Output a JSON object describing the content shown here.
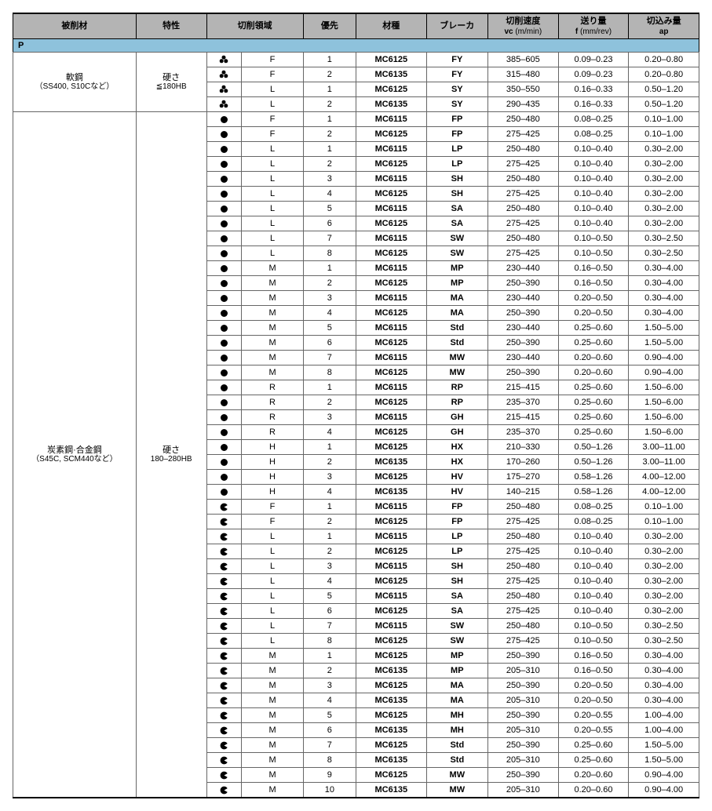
{
  "colors": {
    "header_bg": "#b4b4b4",
    "category_bg": "#8ec2dc",
    "border": "#666666",
    "strong_border": "#000000",
    "text": "#000000"
  },
  "fonts": {
    "base_size_pt": 11,
    "header_weight": "bold"
  },
  "header": {
    "material": "被削材",
    "property": "特性",
    "area": "切削領域",
    "priority": "優先",
    "grade": "材種",
    "breaker": "ブレーカ",
    "vc_top": "切削速度",
    "vc_sub": "vc (m/min)",
    "f_top": "送り量",
    "f_sub": "f (mm/rev)",
    "ap_top": "切込み量",
    "ap_sub": "ap"
  },
  "category": {
    "code": "P"
  },
  "groups": [
    {
      "material_jp": "軟鋼",
      "material_sub": "（SS400, S10Cなど）",
      "property_jp": "硬さ",
      "property_val": "≦180HB",
      "rows": [
        {
          "sym": "clover",
          "area": "F",
          "pri": "1",
          "grade": "MC6125",
          "brk": "FY",
          "vc": "385–605",
          "f": "0.09–0.23",
          "ap": "0.20–0.80"
        },
        {
          "sym": "clover",
          "area": "F",
          "pri": "2",
          "grade": "MC6135",
          "brk": "FY",
          "vc": "315–480",
          "f": "0.09–0.23",
          "ap": "0.20–0.80"
        },
        {
          "sym": "clover",
          "area": "L",
          "pri": "1",
          "grade": "MC6125",
          "brk": "SY",
          "vc": "350–550",
          "f": "0.16–0.33",
          "ap": "0.50–1.20"
        },
        {
          "sym": "clover",
          "area": "L",
          "pri": "2",
          "grade": "MC6135",
          "brk": "SY",
          "vc": "290–435",
          "f": "0.16–0.33",
          "ap": "0.50–1.20"
        }
      ]
    },
    {
      "material_jp": "炭素鋼·合金鋼",
      "material_sub": "（S45C, SCM440など）",
      "property_jp": "硬さ",
      "property_val": "180–280HB",
      "rows": [
        {
          "sym": "circle",
          "area": "F",
          "pri": "1",
          "grade": "MC6115",
          "brk": "FP",
          "vc": "250–480",
          "f": "0.08–0.25",
          "ap": "0.10–1.00"
        },
        {
          "sym": "circle",
          "area": "F",
          "pri": "2",
          "grade": "MC6125",
          "brk": "FP",
          "vc": "275–425",
          "f": "0.08–0.25",
          "ap": "0.10–1.00"
        },
        {
          "sym": "circle",
          "area": "L",
          "pri": "1",
          "grade": "MC6115",
          "brk": "LP",
          "vc": "250–480",
          "f": "0.10–0.40",
          "ap": "0.30–2.00"
        },
        {
          "sym": "circle",
          "area": "L",
          "pri": "2",
          "grade": "MC6125",
          "brk": "LP",
          "vc": "275–425",
          "f": "0.10–0.40",
          "ap": "0.30–2.00"
        },
        {
          "sym": "circle",
          "area": "L",
          "pri": "3",
          "grade": "MC6115",
          "brk": "SH",
          "vc": "250–480",
          "f": "0.10–0.40",
          "ap": "0.30–2.00"
        },
        {
          "sym": "circle",
          "area": "L",
          "pri": "4",
          "grade": "MC6125",
          "brk": "SH",
          "vc": "275–425",
          "f": "0.10–0.40",
          "ap": "0.30–2.00"
        },
        {
          "sym": "circle",
          "area": "L",
          "pri": "5",
          "grade": "MC6115",
          "brk": "SA",
          "vc": "250–480",
          "f": "0.10–0.40",
          "ap": "0.30–2.00"
        },
        {
          "sym": "circle",
          "area": "L",
          "pri": "6",
          "grade": "MC6125",
          "brk": "SA",
          "vc": "275–425",
          "f": "0.10–0.40",
          "ap": "0.30–2.00"
        },
        {
          "sym": "circle",
          "area": "L",
          "pri": "7",
          "grade": "MC6115",
          "brk": "SW",
          "vc": "250–480",
          "f": "0.10–0.50",
          "ap": "0.30–2.50"
        },
        {
          "sym": "circle",
          "area": "L",
          "pri": "8",
          "grade": "MC6125",
          "brk": "SW",
          "vc": "275–425",
          "f": "0.10–0.50",
          "ap": "0.30–2.50"
        },
        {
          "sym": "circle",
          "area": "M",
          "pri": "1",
          "grade": "MC6115",
          "brk": "MP",
          "vc": "230–440",
          "f": "0.16–0.50",
          "ap": "0.30–4.00"
        },
        {
          "sym": "circle",
          "area": "M",
          "pri": "2",
          "grade": "MC6125",
          "brk": "MP",
          "vc": "250–390",
          "f": "0.16–0.50",
          "ap": "0.30–4.00"
        },
        {
          "sym": "circle",
          "area": "M",
          "pri": "3",
          "grade": "MC6115",
          "brk": "MA",
          "vc": "230–440",
          "f": "0.20–0.50",
          "ap": "0.30–4.00"
        },
        {
          "sym": "circle",
          "area": "M",
          "pri": "4",
          "grade": "MC6125",
          "brk": "MA",
          "vc": "250–390",
          "f": "0.20–0.50",
          "ap": "0.30–4.00"
        },
        {
          "sym": "circle",
          "area": "M",
          "pri": "5",
          "grade": "MC6115",
          "brk": "Std",
          "vc": "230–440",
          "f": "0.25–0.60",
          "ap": "1.50–5.00"
        },
        {
          "sym": "circle",
          "area": "M",
          "pri": "6",
          "grade": "MC6125",
          "brk": "Std",
          "vc": "250–390",
          "f": "0.25–0.60",
          "ap": "1.50–5.00"
        },
        {
          "sym": "circle",
          "area": "M",
          "pri": "7",
          "grade": "MC6115",
          "brk": "MW",
          "vc": "230–440",
          "f": "0.20–0.60",
          "ap": "0.90–4.00"
        },
        {
          "sym": "circle",
          "area": "M",
          "pri": "8",
          "grade": "MC6125",
          "brk": "MW",
          "vc": "250–390",
          "f": "0.20–0.60",
          "ap": "0.90–4.00"
        },
        {
          "sym": "circle",
          "area": "R",
          "pri": "1",
          "grade": "MC6115",
          "brk": "RP",
          "vc": "215–415",
          "f": "0.25–0.60",
          "ap": "1.50–6.00"
        },
        {
          "sym": "circle",
          "area": "R",
          "pri": "2",
          "grade": "MC6125",
          "brk": "RP",
          "vc": "235–370",
          "f": "0.25–0.60",
          "ap": "1.50–6.00"
        },
        {
          "sym": "circle",
          "area": "R",
          "pri": "3",
          "grade": "MC6115",
          "brk": "GH",
          "vc": "215–415",
          "f": "0.25–0.60",
          "ap": "1.50–6.00"
        },
        {
          "sym": "circle",
          "area": "R",
          "pri": "4",
          "grade": "MC6125",
          "brk": "GH",
          "vc": "235–370",
          "f": "0.25–0.60",
          "ap": "1.50–6.00"
        },
        {
          "sym": "circle",
          "area": "H",
          "pri": "1",
          "grade": "MC6125",
          "brk": "HX",
          "vc": "210–330",
          "f": "0.50–1.26",
          "ap": "3.00–11.00"
        },
        {
          "sym": "circle",
          "area": "H",
          "pri": "2",
          "grade": "MC6135",
          "brk": "HX",
          "vc": "170–260",
          "f": "0.50–1.26",
          "ap": "3.00–11.00"
        },
        {
          "sym": "circle",
          "area": "H",
          "pri": "3",
          "grade": "MC6125",
          "brk": "HV",
          "vc": "175–270",
          "f": "0.58–1.26",
          "ap": "4.00–12.00"
        },
        {
          "sym": "circle",
          "area": "H",
          "pri": "4",
          "grade": "MC6135",
          "brk": "HV",
          "vc": "140–215",
          "f": "0.58–1.26",
          "ap": "4.00–12.00"
        },
        {
          "sym": "pac",
          "area": "F",
          "pri": "1",
          "grade": "MC6115",
          "brk": "FP",
          "vc": "250–480",
          "f": "0.08–0.25",
          "ap": "0.10–1.00"
        },
        {
          "sym": "pac",
          "area": "F",
          "pri": "2",
          "grade": "MC6125",
          "brk": "FP",
          "vc": "275–425",
          "f": "0.08–0.25",
          "ap": "0.10–1.00"
        },
        {
          "sym": "pac",
          "area": "L",
          "pri": "1",
          "grade": "MC6115",
          "brk": "LP",
          "vc": "250–480",
          "f": "0.10–0.40",
          "ap": "0.30–2.00"
        },
        {
          "sym": "pac",
          "area": "L",
          "pri": "2",
          "grade": "MC6125",
          "brk": "LP",
          "vc": "275–425",
          "f": "0.10–0.40",
          "ap": "0.30–2.00"
        },
        {
          "sym": "pac",
          "area": "L",
          "pri": "3",
          "grade": "MC6115",
          "brk": "SH",
          "vc": "250–480",
          "f": "0.10–0.40",
          "ap": "0.30–2.00"
        },
        {
          "sym": "pac",
          "area": "L",
          "pri": "4",
          "grade": "MC6125",
          "brk": "SH",
          "vc": "275–425",
          "f": "0.10–0.40",
          "ap": "0.30–2.00"
        },
        {
          "sym": "pac",
          "area": "L",
          "pri": "5",
          "grade": "MC6115",
          "brk": "SA",
          "vc": "250–480",
          "f": "0.10–0.40",
          "ap": "0.30–2.00"
        },
        {
          "sym": "pac",
          "area": "L",
          "pri": "6",
          "grade": "MC6125",
          "brk": "SA",
          "vc": "275–425",
          "f": "0.10–0.40",
          "ap": "0.30–2.00"
        },
        {
          "sym": "pac",
          "area": "L",
          "pri": "7",
          "grade": "MC6115",
          "brk": "SW",
          "vc": "250–480",
          "f": "0.10–0.50",
          "ap": "0.30–2.50"
        },
        {
          "sym": "pac",
          "area": "L",
          "pri": "8",
          "grade": "MC6125",
          "brk": "SW",
          "vc": "275–425",
          "f": "0.10–0.50",
          "ap": "0.30–2.50"
        },
        {
          "sym": "pac",
          "area": "M",
          "pri": "1",
          "grade": "MC6125",
          "brk": "MP",
          "vc": "250–390",
          "f": "0.16–0.50",
          "ap": "0.30–4.00"
        },
        {
          "sym": "pac",
          "area": "M",
          "pri": "2",
          "grade": "MC6135",
          "brk": "MP",
          "vc": "205–310",
          "f": "0.16–0.50",
          "ap": "0.30–4.00"
        },
        {
          "sym": "pac",
          "area": "M",
          "pri": "3",
          "grade": "MC6125",
          "brk": "MA",
          "vc": "250–390",
          "f": "0.20–0.50",
          "ap": "0.30–4.00"
        },
        {
          "sym": "pac",
          "area": "M",
          "pri": "4",
          "grade": "MC6135",
          "brk": "MA",
          "vc": "205–310",
          "f": "0.20–0.50",
          "ap": "0.30–4.00"
        },
        {
          "sym": "pac",
          "area": "M",
          "pri": "5",
          "grade": "MC6125",
          "brk": "MH",
          "vc": "250–390",
          "f": "0.20–0.55",
          "ap": "1.00–4.00"
        },
        {
          "sym": "pac",
          "area": "M",
          "pri": "6",
          "grade": "MC6135",
          "brk": "MH",
          "vc": "205–310",
          "f": "0.20–0.55",
          "ap": "1.00–4.00"
        },
        {
          "sym": "pac",
          "area": "M",
          "pri": "7",
          "grade": "MC6125",
          "brk": "Std",
          "vc": "250–390",
          "f": "0.25–0.60",
          "ap": "1.50–5.00"
        },
        {
          "sym": "pac",
          "area": "M",
          "pri": "8",
          "grade": "MC6135",
          "brk": "Std",
          "vc": "205–310",
          "f": "0.25–0.60",
          "ap": "1.50–5.00"
        },
        {
          "sym": "pac",
          "area": "M",
          "pri": "9",
          "grade": "MC6125",
          "brk": "MW",
          "vc": "250–390",
          "f": "0.20–0.60",
          "ap": "0.90–4.00"
        },
        {
          "sym": "pac",
          "area": "M",
          "pri": "10",
          "grade": "MC6135",
          "brk": "MW",
          "vc": "205–310",
          "f": "0.20–0.60",
          "ap": "0.90–4.00"
        }
      ]
    }
  ]
}
